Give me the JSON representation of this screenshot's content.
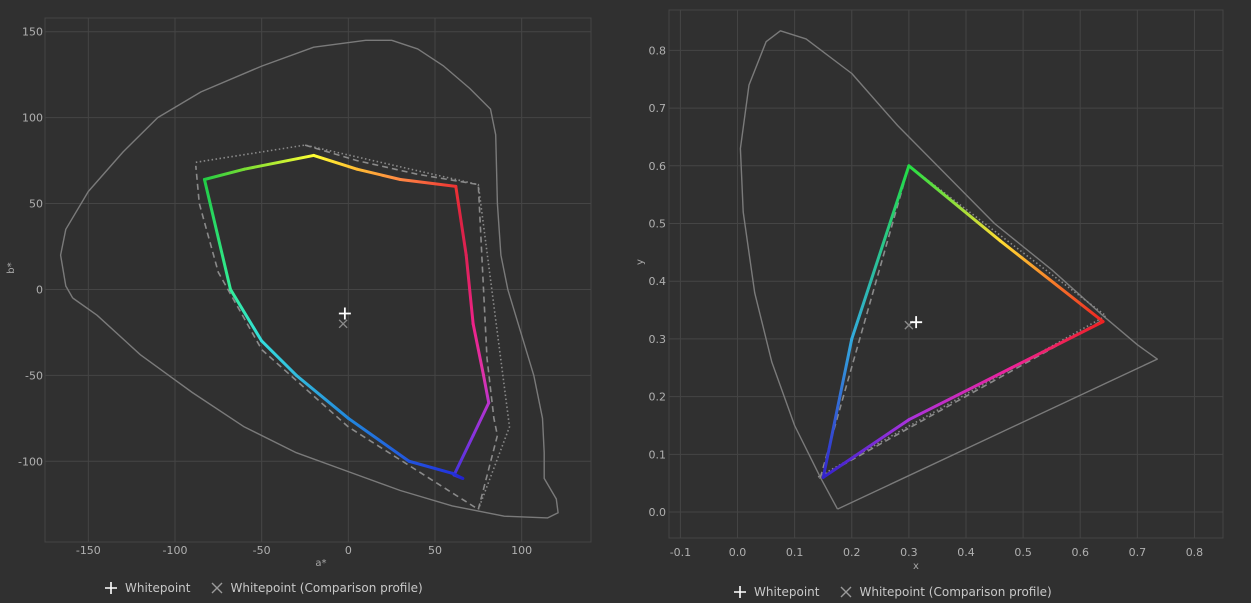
{
  "legend": {
    "whitepoint": "Whitepoint",
    "comparison": "Whitepoint (Comparison profile)"
  },
  "colors": {
    "background": "#303030",
    "grid": "#454545",
    "locus": "#7a7a7a",
    "comparison": "#8a8a8a",
    "whitepoint": "#ffffff",
    "comparison_whitepoint": "#8a8a8a"
  },
  "chart_data": [
    {
      "type": "line",
      "xlabel": "a*",
      "ylabel": "b*",
      "xlim": [
        -175,
        140
      ],
      "ylim": [
        -147,
        158
      ],
      "xticks": [
        -150,
        -100,
        -50,
        0,
        50,
        100
      ],
      "yticks": [
        150,
        100,
        50,
        0,
        -50,
        -100
      ],
      "grid": true,
      "whitepoint": [
        -2,
        -14
      ],
      "comparison_whitepoint": [
        -3,
        -20
      ],
      "locus": [
        [
          -159,
          -5
        ],
        [
          -163,
          2
        ],
        [
          -166,
          20
        ],
        [
          -163,
          35
        ],
        [
          -150,
          57
        ],
        [
          -130,
          80
        ],
        [
          -110,
          100
        ],
        [
          -85,
          115
        ],
        [
          -50,
          130
        ],
        [
          -20,
          141
        ],
        [
          10,
          145
        ],
        [
          25,
          145
        ],
        [
          40,
          140
        ],
        [
          55,
          130
        ],
        [
          70,
          117
        ],
        [
          82,
          105
        ],
        [
          85,
          90
        ],
        [
          86,
          50
        ],
        [
          88,
          20
        ],
        [
          92,
          0
        ],
        [
          98,
          -20
        ],
        [
          107,
          -50
        ],
        [
          112,
          -75
        ],
        [
          113,
          -95
        ],
        [
          113,
          -110
        ],
        [
          120,
          -122
        ],
        [
          121,
          -130
        ],
        [
          115,
          -133
        ],
        [
          90,
          -132
        ],
        [
          60,
          -126
        ],
        [
          30,
          -117
        ],
        [
          0,
          -106
        ],
        [
          -30,
          -95
        ],
        [
          -60,
          -80
        ],
        [
          -90,
          -60
        ],
        [
          -120,
          -38
        ],
        [
          -145,
          -15
        ],
        [
          -159,
          -5
        ]
      ],
      "gamut": [
        {
          "a": -83,
          "b": 64,
          "color": "#22cc44"
        },
        {
          "a": -60,
          "b": 70,
          "color": "#77dd33"
        },
        {
          "a": -20,
          "b": 78,
          "color": "#ffff33"
        },
        {
          "a": 5,
          "b": 70,
          "color": "#ffbb33"
        },
        {
          "a": 30,
          "b": 64,
          "color": "#ff8844"
        },
        {
          "a": 62,
          "b": 60,
          "color": "#ee3333"
        },
        {
          "a": 65,
          "b": 40,
          "color": "#dd2244"
        },
        {
          "a": 68,
          "b": 20,
          "color": "#dd2255"
        },
        {
          "a": 72,
          "b": -20,
          "color": "#ee2288"
        },
        {
          "a": 78,
          "b": -50,
          "color": "#dd33aa"
        },
        {
          "a": 81,
          "b": -66,
          "color": "#bb33cc"
        },
        {
          "a": 72,
          "b": -85,
          "color": "#8833dd"
        },
        {
          "a": 61,
          "b": -108,
          "color": "#4433dd"
        },
        {
          "a": 66,
          "b": -110,
          "color": "#2222cc"
        },
        {
          "a": 60,
          "b": -107,
          "color": "#2233dd"
        },
        {
          "a": 35,
          "b": -100,
          "color": "#2255dd"
        },
        {
          "a": 0,
          "b": -75,
          "color": "#2288dd"
        },
        {
          "a": -30,
          "b": -50,
          "color": "#33bbdd"
        },
        {
          "a": -50,
          "b": -30,
          "color": "#33dddd"
        },
        {
          "a": -68,
          "b": 0,
          "color": "#33ee99"
        },
        {
          "a": -83,
          "b": 64,
          "color": "#22cc44"
        }
      ],
      "comparison_dashed": [
        [
          -25,
          84
        ],
        [
          5,
          75
        ],
        [
          40,
          67
        ],
        [
          75,
          61
        ],
        [
          77,
          20
        ],
        [
          80,
          -40
        ],
        [
          84,
          -75
        ],
        [
          86,
          -85
        ],
        [
          75,
          -128
        ],
        [
          0,
          -80
        ],
        [
          -50,
          -35
        ],
        [
          -75,
          10
        ],
        [
          -86,
          50
        ],
        [
          -88,
          72
        ]
      ],
      "comparison_dotted": [
        [
          -88,
          74
        ],
        [
          -25,
          84
        ],
        [
          75,
          61
        ],
        [
          93,
          -80
        ],
        [
          75,
          -128
        ]
      ]
    },
    {
      "type": "line",
      "xlabel": "x",
      "ylabel": "y",
      "xlim": [
        -0.12,
        0.85
      ],
      "ylim": [
        -0.045,
        0.87
      ],
      "xticks": [
        -0.1,
        0.0,
        0.1,
        0.2,
        0.3,
        0.4,
        0.5,
        0.6,
        0.7,
        0.8
      ],
      "yticks": [
        0.8,
        0.7,
        0.6,
        0.5,
        0.4,
        0.3,
        0.2,
        0.1,
        0.0
      ],
      "grid": true,
      "whitepoint": [
        0.3127,
        0.329
      ],
      "comparison_whitepoint": [
        0.3,
        0.324
      ],
      "locus": [
        [
          0.175,
          0.005
        ],
        [
          0.145,
          0.06
        ],
        [
          0.1,
          0.15
        ],
        [
          0.06,
          0.26
        ],
        [
          0.03,
          0.38
        ],
        [
          0.01,
          0.52
        ],
        [
          0.005,
          0.63
        ],
        [
          0.02,
          0.74
        ],
        [
          0.05,
          0.815
        ],
        [
          0.075,
          0.834
        ],
        [
          0.12,
          0.82
        ],
        [
          0.2,
          0.76
        ],
        [
          0.28,
          0.67
        ],
        [
          0.35,
          0.6
        ],
        [
          0.45,
          0.5
        ],
        [
          0.55,
          0.42
        ],
        [
          0.64,
          0.34
        ],
        [
          0.7,
          0.29
        ],
        [
          0.735,
          0.265
        ],
        [
          0.175,
          0.005
        ]
      ],
      "gamut": [
        {
          "x": 0.64,
          "y": 0.33,
          "color": "#ee2222"
        },
        {
          "x": 0.48,
          "y": 0.25,
          "color": "#ee2299"
        },
        {
          "x": 0.3,
          "y": 0.16,
          "color": "#aa33dd"
        },
        {
          "x": 0.15,
          "y": 0.06,
          "color": "#3322cc"
        },
        {
          "x": 0.2,
          "y": 0.3,
          "color": "#33aadd"
        },
        {
          "x": 0.3,
          "y": 0.6,
          "color": "#22dd44"
        },
        {
          "x": 0.46,
          "y": 0.47,
          "color": "#ffdd33"
        },
        {
          "x": 0.64,
          "y": 0.33,
          "color": "#ee2222"
        }
      ],
      "comparison_dashed": [
        [
          0.635,
          0.33
        ],
        [
          0.145,
          0.06
        ],
        [
          0.3,
          0.6
        ]
      ],
      "comparison_dotted": [
        [
          0.3,
          0.6
        ],
        [
          0.645,
          0.34
        ],
        [
          0.14,
          0.06
        ]
      ]
    }
  ]
}
